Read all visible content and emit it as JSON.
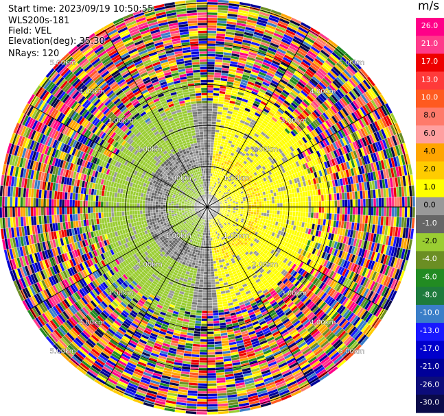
{
  "info": {
    "start_time": "Start time: 2023/09/19 10:50:55",
    "site": "WLS200s-181",
    "field": "Field: VEL",
    "elevation": "Elevation(deg): 35.30",
    "nrays": "NRays: 120"
  },
  "chart_data": {
    "type": "heatmap",
    "projection": "polar-ppi",
    "field": "VEL",
    "elevation_deg": 35.3,
    "n_rays": 120,
    "max_range_km": 5.0,
    "range_ring_labels": [
      "1.00km",
      "2.00km",
      "3.00km",
      "4.00km",
      "5.00km"
    ],
    "colorbar": {
      "unit": "m/s",
      "tick_labels": [
        "26.0",
        "21.0",
        "17.0",
        "13.0",
        "10.0",
        "8.0",
        "6.0",
        "4.0",
        "2.0",
        "1.0",
        "0.0",
        "-1.0",
        "-2.0",
        "-4.0",
        "-6.0",
        "-8.0",
        "-10.0",
        "-13.0",
        "-17.0",
        "-21.0",
        "-26.0",
        "-30.0"
      ],
      "colors": [
        "#ff0088",
        "#ff3a8a",
        "#ee0000",
        "#ff3a3a",
        "#ff5a20",
        "#ff7a6a",
        "#ffa0a0",
        "#ffa500",
        "#ffcc00",
        "#ffff00",
        "#999999",
        "#666666",
        "#9acd32",
        "#6b8e23",
        "#228b22",
        "#1e7b3c",
        "#3a7ec8",
        "#1818ff",
        "#0000cc",
        "#000099",
        "#0c0c7a",
        "#0a0a4a"
      ]
    }
  }
}
